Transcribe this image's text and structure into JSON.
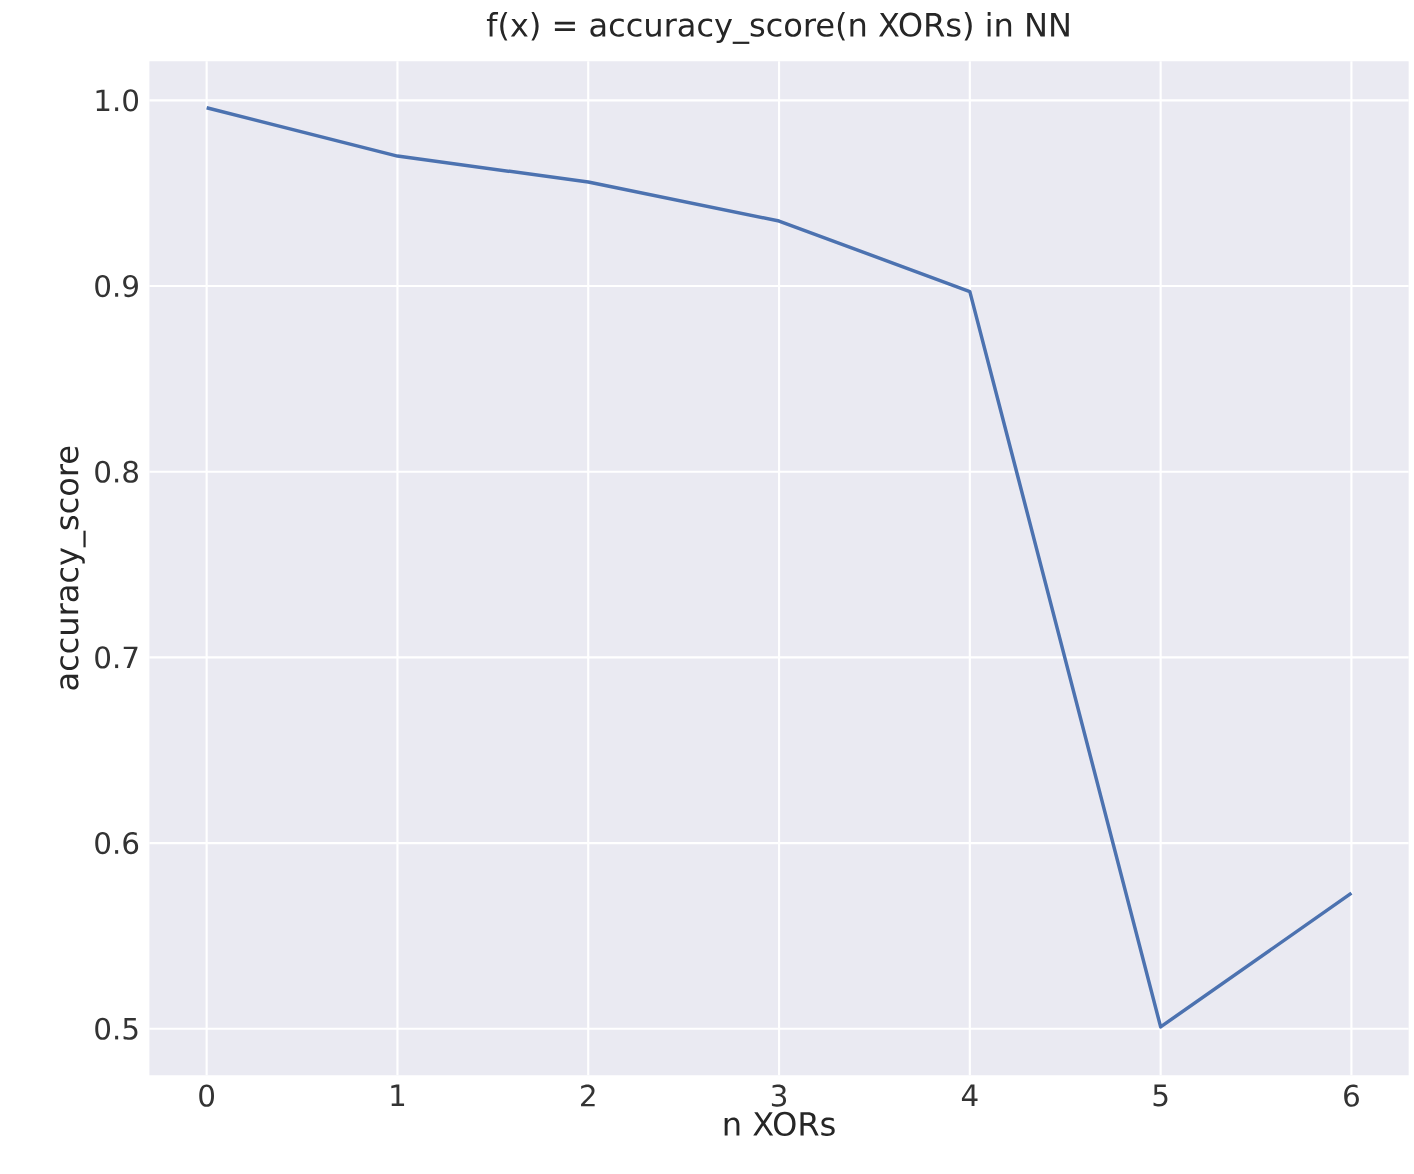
{
  "chart_data": {
    "type": "line",
    "title": "f(x) = accuracy_score(n XORs) in NN",
    "xlabel": "n XORs",
    "ylabel": "accuracy_score",
    "x": [
      0,
      1,
      2,
      3,
      4,
      5,
      6
    ],
    "series": [
      {
        "color": "#4c72b0",
        "values": [
          0.996,
          0.97,
          0.956,
          0.935,
          0.897,
          0.501,
          0.573
        ]
      }
    ],
    "xlim": [
      -0.3,
      6.3
    ],
    "ylim": [
      0.475,
      1.021
    ],
    "xticks": [
      0,
      1,
      2,
      3,
      4,
      5,
      6
    ],
    "yticks": [
      {
        "value": 0.5,
        "label": "0.5"
      },
      {
        "value": 0.6,
        "label": "0.6"
      },
      {
        "value": 0.7,
        "label": "0.7"
      },
      {
        "value": 0.8,
        "label": "0.8"
      },
      {
        "value": 0.9,
        "label": "0.9"
      },
      {
        "value": 1.0,
        "label": "1.0"
      }
    ],
    "grid": true,
    "marker": "none",
    "line_style": "solid"
  }
}
